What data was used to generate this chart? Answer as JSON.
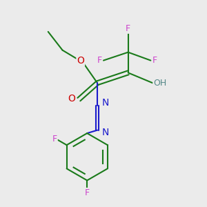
{
  "background_color": "#ebebeb",
  "atom_colors": {
    "C": "#1a7a1a",
    "O": "#cc0000",
    "N": "#1a1acc",
    "F": "#cc44cc",
    "H": "#558888"
  },
  "bond_color": "#1a7a1a",
  "figsize": [
    3.0,
    3.0
  ],
  "dpi": 100
}
